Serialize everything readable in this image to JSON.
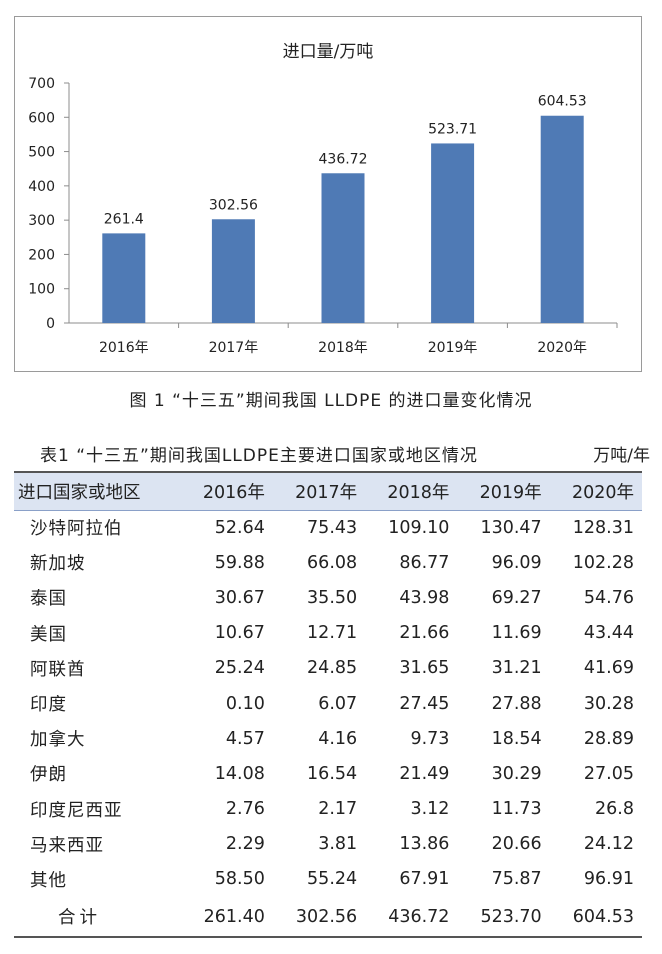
{
  "chart_data": {
    "type": "bar",
    "title": "进口量/万吨",
    "categories": [
      "2016年",
      "2017年",
      "2018年",
      "2019年",
      "2020年"
    ],
    "values": [
      261.4,
      302.56,
      436.72,
      523.71,
      604.53
    ],
    "value_labels": [
      "261.4",
      "302.56",
      "436.72",
      "523.71",
      "604.53"
    ],
    "ylim": [
      0,
      700
    ],
    "yticks": [
      0,
      100,
      200,
      300,
      400,
      500,
      600,
      700
    ],
    "grid": false,
    "legend": "none",
    "bar_color": "#4f7ab5"
  },
  "figure_caption": "图 1 “十三五”期间我国 LLDPE 的进口量变化情况",
  "table": {
    "caption": "表1 “十三五”期间我国LLDPE主要进口国家或地区情况",
    "unit": "万吨/年",
    "header": [
      "进口国家或地区",
      "2016年",
      "2017年",
      "2018年",
      "2019年",
      "2020年"
    ],
    "rows": [
      [
        "沙特阿拉伯",
        "52.64",
        "75.43",
        "109.10",
        "130.47",
        "128.31"
      ],
      [
        "新加坡",
        "59.88",
        "66.08",
        "86.77",
        "96.09",
        "102.28"
      ],
      [
        "泰国",
        "30.67",
        "35.50",
        "43.98",
        "69.27",
        "54.76"
      ],
      [
        "美国",
        "10.67",
        "12.71",
        "21.66",
        "11.69",
        "43.44"
      ],
      [
        "阿联酋",
        "25.24",
        "24.85",
        "31.65",
        "31.21",
        "41.69"
      ],
      [
        "印度",
        "0.10",
        "6.07",
        "27.45",
        "27.88",
        "30.28"
      ],
      [
        "加拿大",
        "4.57",
        "4.16",
        "9.73",
        "18.54",
        "28.89"
      ],
      [
        "伊朗",
        "14.08",
        "16.54",
        "21.49",
        "30.29",
        "27.05"
      ],
      [
        "印度尼西亚",
        "2.76",
        "2.17",
        "3.12",
        "11.73",
        "26.8"
      ],
      [
        "马来西亚",
        "2.29",
        "3.81",
        "13.86",
        "20.66",
        "24.12"
      ],
      [
        "其他",
        "58.50",
        "55.24",
        "67.91",
        "75.87",
        "96.91"
      ]
    ],
    "total": [
      "合计",
      "261.40",
      "302.56",
      "436.72",
      "523.70",
      "604.53"
    ]
  }
}
